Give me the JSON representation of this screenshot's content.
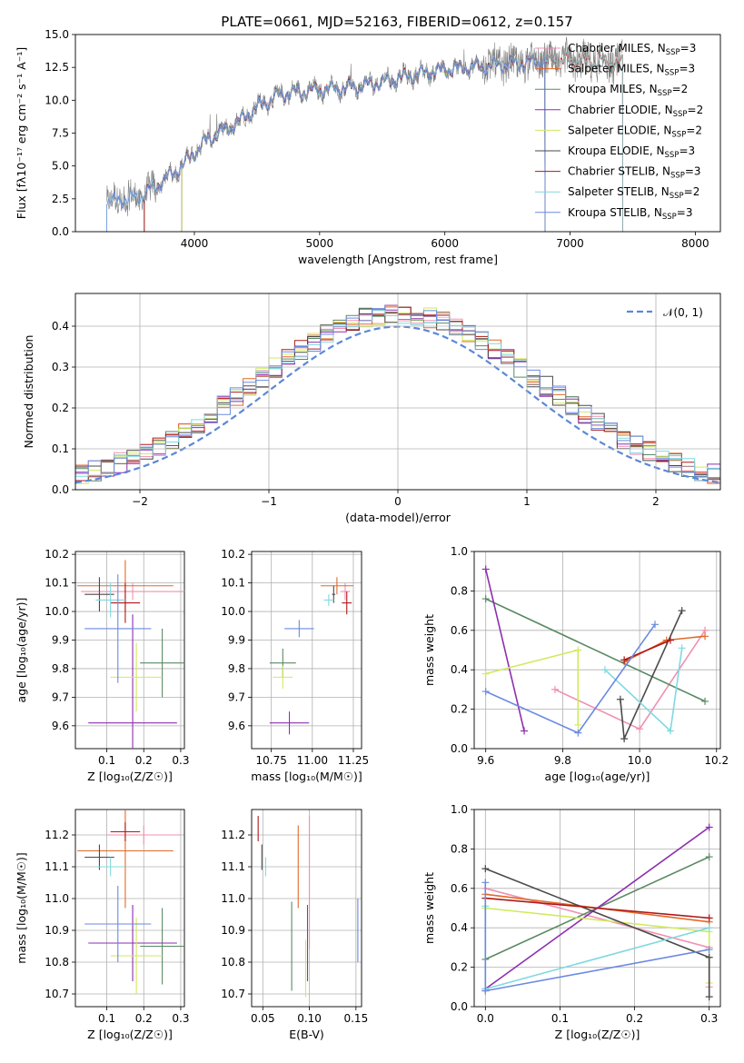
{
  "title": "PLATE=0661, MJD=52163, FIBERID=0612, z=0.157",
  "colors": [
    "#f08fb4",
    "#e06a2a",
    "#5a8a64",
    "#8e2eb0",
    "#d0ea5e",
    "#4a4a4a",
    "#b01818",
    "#80d8e0",
    "#6a8ae0"
  ],
  "chart_data": [
    {
      "id": "spectrum",
      "type": "line",
      "xlabel": "wavelength [Angstrom, rest frame]",
      "ylabel": "Flux [fλ10⁻¹⁷ erg cm⁻² s⁻¹ A⁻¹]",
      "xlim": [
        3050,
        8200
      ],
      "ylim": [
        0,
        15
      ],
      "xticks": [
        4000,
        5000,
        6000,
        7000,
        8000
      ],
      "yticks": [
        0.0,
        2.5,
        5.0,
        7.5,
        10.0,
        12.5,
        15.0
      ],
      "grid": false,
      "legend_position": "top-right",
      "data_color": "#808080",
      "continuum": {
        "x": [
          3300,
          3550,
          3700,
          3900,
          4100,
          4300,
          4500,
          4700,
          5000,
          5300,
          5600,
          5900,
          6300,
          6700,
          7000,
          7300,
          7420
        ],
        "y": [
          2.3,
          2.6,
          3.5,
          5.0,
          7.0,
          8.0,
          9.5,
          10.5,
          10.8,
          11.0,
          11.6,
          12.2,
          12.6,
          12.9,
          13.0,
          12.9,
          12.8
        ]
      },
      "model_starts": [
        3600,
        3600,
        3900,
        3900,
        3900,
        3600,
        3600,
        3300,
        3300
      ],
      "model_ends": [
        7420,
        7420,
        6800,
        6800,
        6800,
        6800,
        7420,
        7420,
        6800
      ],
      "series": [
        {
          "name": "Chabrier MILES, N",
          "sub": "SSP",
          "suffix": "=3"
        },
        {
          "name": "Salpeter MILES, N",
          "sub": "SSP",
          "suffix": "=3"
        },
        {
          "name": "Kroupa MILES, N",
          "sub": "SSP",
          "suffix": "=2"
        },
        {
          "name": "Chabrier ELODIE, N",
          "sub": "SSP",
          "suffix": "=2"
        },
        {
          "name": "Salpeter ELODIE, N",
          "sub": "SSP",
          "suffix": "=2"
        },
        {
          "name": "Kroupa ELODIE, N",
          "sub": "SSP",
          "suffix": "=3"
        },
        {
          "name": "Chabrier STELIB, N",
          "sub": "SSP",
          "suffix": "=3"
        },
        {
          "name": "Salpeter STELIB, N",
          "sub": "SSP",
          "suffix": "=2"
        },
        {
          "name": "Kroupa STELIB, N",
          "sub": "SSP",
          "suffix": "=3"
        }
      ]
    },
    {
      "id": "residuals",
      "type": "line",
      "xlabel": "(data-model)/error",
      "ylabel": "Normed distribution",
      "xlim": [
        -2.5,
        2.5
      ],
      "ylim": [
        0,
        0.48
      ],
      "xticks": [
        -2,
        -1,
        0,
        1,
        2
      ],
      "yticks": [
        0.0,
        0.1,
        0.2,
        0.3,
        0.4
      ],
      "grid": true,
      "legend": "𝒩(0, 1)",
      "legend_position": "top-right",
      "gauss_color": "#5b87d8",
      "bins": [
        -2.5,
        2.5,
        50
      ]
    },
    {
      "id": "age_vs_Z",
      "type": "scatter",
      "xlabel": "Z [log₁₀(Z/Z☉)]",
      "ylabel": "age  [log₁₀(age/yr)]",
      "xlim": [
        0.015,
        0.31
      ],
      "ylim": [
        9.52,
        10.21
      ],
      "xticks": [
        0.1,
        0.2,
        0.3
      ],
      "yticks": [
        9.6,
        9.7,
        9.8,
        9.9,
        10.0,
        10.1,
        10.2
      ],
      "grid": true,
      "errorbars": [
        {
          "x": 0.17,
          "xerr": 0.14,
          "y": 10.07,
          "yerr": 0.03
        },
        {
          "x": 0.15,
          "xerr": 0.13,
          "y": 10.09,
          "yerr": 0.09
        },
        {
          "x": 0.25,
          "xerr": 0.06,
          "y": 9.82,
          "yerr": 0.12
        },
        {
          "x": 0.17,
          "xerr": 0.12,
          "y": 9.61,
          "yerr": 0.38
        },
        {
          "x": 0.18,
          "xerr": 0.07,
          "y": 9.77,
          "yerr": 0.12
        },
        {
          "x": 0.08,
          "xerr": 0.04,
          "y": 10.06,
          "yerr": 0.06
        },
        {
          "x": 0.15,
          "xerr": 0.04,
          "y": 10.03,
          "yerr": 0.07
        },
        {
          "x": 0.11,
          "xerr": 0.04,
          "y": 10.04,
          "yerr": 0.06
        },
        {
          "x": 0.13,
          "xerr": 0.09,
          "y": 9.94,
          "yerr": 0.19
        }
      ]
    },
    {
      "id": "age_vs_mass",
      "type": "scatter",
      "xlabel": "mass [log₁₀(M/M☉)]",
      "ylabel": "",
      "xlim": [
        10.63,
        11.3
      ],
      "ylim": [
        9.52,
        10.21
      ],
      "xticks": [
        10.75,
        11.0,
        11.25
      ],
      "yticks": [
        9.6,
        9.7,
        9.8,
        9.9,
        10.0,
        10.1,
        10.2
      ],
      "grid": true,
      "errorbars": [
        {
          "x": 11.2,
          "xerr": 0.03,
          "y": 10.07,
          "yerr": 0.03
        },
        {
          "x": 11.15,
          "xerr": 0.1,
          "y": 10.09,
          "yerr": 0.03
        },
        {
          "x": 10.82,
          "xerr": 0.08,
          "y": 9.82,
          "yerr": 0.05
        },
        {
          "x": 10.86,
          "xerr": 0.12,
          "y": 9.61,
          "yerr": 0.04
        },
        {
          "x": 10.82,
          "xerr": 0.06,
          "y": 9.77,
          "yerr": 0.04
        },
        {
          "x": 11.13,
          "xerr": 0.01,
          "y": 10.06,
          "yerr": 0.03
        },
        {
          "x": 11.21,
          "xerr": 0.03,
          "y": 10.03,
          "yerr": 0.04
        },
        {
          "x": 11.1,
          "xerr": 0.03,
          "y": 10.04,
          "yerr": 0.02
        },
        {
          "x": 10.92,
          "xerr": 0.09,
          "y": 9.94,
          "yerr": 0.03
        }
      ]
    },
    {
      "id": "weight_vs_age",
      "type": "line",
      "xlabel": "age  [log₁₀(age/yr)]",
      "ylabel": "mass weight",
      "xlim": [
        9.57,
        10.21
      ],
      "ylim": [
        0,
        1
      ],
      "xticks": [
        9.6,
        9.8,
        10.0,
        10.2
      ],
      "yticks": [
        0.0,
        0.2,
        0.4,
        0.6,
        0.8,
        1.0
      ],
      "grid": true,
      "series": [
        {
          "x": [
            9.78,
            10.0,
            10.17
          ],
          "y": [
            0.3,
            0.1,
            0.6
          ]
        },
        {
          "x": [
            9.96,
            10.07,
            10.17
          ],
          "y": [
            0.44,
            0.55,
            0.57
          ]
        },
        {
          "x": [
            9.6,
            10.17
          ],
          "y": [
            0.76,
            0.24
          ]
        },
        {
          "x": [
            9.6,
            9.7
          ],
          "y": [
            0.91,
            0.09
          ]
        },
        {
          "x": [
            9.6,
            9.84,
            9.84
          ],
          "y": [
            0.38,
            0.5,
            0.12
          ]
        },
        {
          "x": [
            9.95,
            9.96,
            10.11
          ],
          "y": [
            0.25,
            0.05,
            0.7
          ]
        },
        {
          "x": [
            9.96,
            10.08
          ],
          "y": [
            0.45,
            0.55
          ]
        },
        {
          "x": [
            9.91,
            10.08,
            10.11
          ],
          "y": [
            0.4,
            0.09,
            0.51
          ]
        },
        {
          "x": [
            9.6,
            9.84,
            10.04
          ],
          "y": [
            0.29,
            0.08,
            0.63
          ]
        }
      ]
    },
    {
      "id": "mass_vs_Z",
      "type": "scatter",
      "xlabel": "Z [log₁₀(Z/Z☉)]",
      "ylabel": "mass [log₁₀(M/M☉)]",
      "xlim": [
        0.015,
        0.31
      ],
      "ylim": [
        10.66,
        11.28
      ],
      "xticks": [
        0.1,
        0.2,
        0.3
      ],
      "yticks": [
        10.7,
        10.8,
        10.9,
        11.0,
        11.1,
        11.2
      ],
      "grid": true,
      "errorbars": [
        {
          "x": 0.2,
          "xerr": 0.1,
          "y": 11.2,
          "yerr": 0.03
        },
        {
          "x": 0.15,
          "xerr": 0.13,
          "y": 11.15,
          "yerr": 0.18
        },
        {
          "x": 0.25,
          "xerr": 0.06,
          "y": 10.85,
          "yerr": 0.12
        },
        {
          "x": 0.17,
          "xerr": 0.12,
          "y": 10.86,
          "yerr": 0.12
        },
        {
          "x": 0.18,
          "xerr": 0.07,
          "y": 10.82,
          "yerr": 0.12
        },
        {
          "x": 0.08,
          "xerr": 0.04,
          "y": 11.13,
          "yerr": 0.04
        },
        {
          "x": 0.15,
          "xerr": 0.04,
          "y": 11.21,
          "yerr": 0.03
        },
        {
          "x": 0.11,
          "xerr": 0.04,
          "y": 11.1,
          "yerr": 0.03
        },
        {
          "x": 0.13,
          "xerr": 0.09,
          "y": 10.92,
          "yerr": 0.12
        }
      ]
    },
    {
      "id": "mass_vs_EBV",
      "type": "scatter",
      "xlabel": "E(B-V)",
      "ylabel": "",
      "xlim": [
        0.038,
        0.156
      ],
      "ylim": [
        10.66,
        11.28
      ],
      "xticks": [
        0.05,
        0.1,
        0.15
      ],
      "yticks": [
        10.7,
        10.8,
        10.9,
        11.0,
        11.1,
        11.2
      ],
      "grid": true,
      "errorbars": [
        {
          "x": 0.1,
          "xerr": 0,
          "y": 11.05,
          "yerr": 0.21
        },
        {
          "x": 0.088,
          "xerr": 0,
          "y": 11.1,
          "yerr": 0.13
        },
        {
          "x": 0.081,
          "xerr": 0,
          "y": 10.85,
          "yerr": 0.14
        },
        {
          "x": 0.098,
          "xerr": 0,
          "y": 10.86,
          "yerr": 0.12
        },
        {
          "x": 0.096,
          "xerr": 0,
          "y": 10.78,
          "yerr": 0.09
        },
        {
          "x": 0.049,
          "xerr": 0,
          "y": 11.13,
          "yerr": 0.04
        },
        {
          "x": 0.045,
          "xerr": 0,
          "y": 11.22,
          "yerr": 0.04
        },
        {
          "x": 0.053,
          "xerr": 0,
          "y": 11.1,
          "yerr": 0.03
        },
        {
          "x": 0.152,
          "xerr": 0,
          "y": 10.9,
          "yerr": 0.1
        }
      ]
    },
    {
      "id": "weight_vs_Z",
      "type": "line",
      "xlabel": "Z [log₁₀(Z/Z☉)]",
      "ylabel": "mass weight",
      "xlim": [
        -0.015,
        0.315
      ],
      "ylim": [
        0,
        1
      ],
      "xticks": [
        0.0,
        0.1,
        0.2,
        0.3
      ],
      "yticks": [
        0.0,
        0.2,
        0.4,
        0.6,
        0.8,
        1.0
      ],
      "grid": true,
      "series": [
        {
          "x": [
            0.0,
            0.3,
            0.3
          ],
          "y": [
            0.6,
            0.3,
            0.1
          ]
        },
        {
          "x": [
            0.0,
            0.3
          ],
          "y": [
            0.57,
            0.43
          ]
        },
        {
          "x": [
            0.0,
            0.3
          ],
          "y": [
            0.24,
            0.76
          ]
        },
        {
          "x": [
            0.0,
            0.3
          ],
          "y": [
            0.09,
            0.91
          ]
        },
        {
          "x": [
            0.0,
            0.3,
            0.3
          ],
          "y": [
            0.5,
            0.38,
            0.12
          ]
        },
        {
          "x": [
            0.0,
            0.3,
            0.3
          ],
          "y": [
            0.7,
            0.25,
            0.05
          ]
        },
        {
          "x": [
            0.0,
            0.3
          ],
          "y": [
            0.55,
            0.45
          ]
        },
        {
          "x": [
            0.0,
            0.0,
            0.3
          ],
          "y": [
            0.51,
            0.09,
            0.4
          ]
        },
        {
          "x": [
            0.0,
            0.0,
            0.3
          ],
          "y": [
            0.63,
            0.08,
            0.29
          ]
        }
      ]
    }
  ]
}
